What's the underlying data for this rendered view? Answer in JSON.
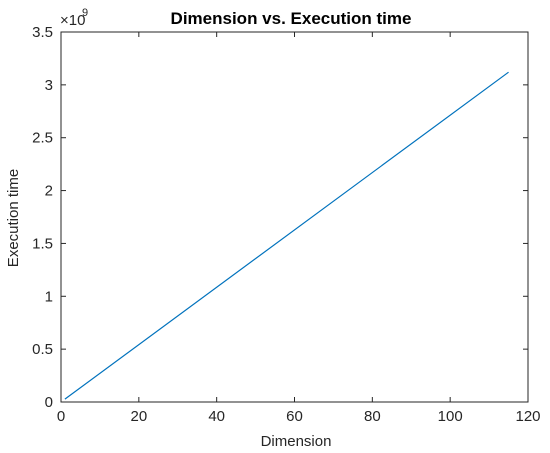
{
  "chart_data": {
    "type": "line",
    "title": "Dimension vs. Execution time",
    "xlabel": "Dimension",
    "ylabel": "Execution time",
    "xlim": [
      0,
      120
    ],
    "ylim": [
      0,
      3.5
    ],
    "x_ticks": [
      "0",
      "20",
      "40",
      "60",
      "80",
      "100",
      "120"
    ],
    "y_ticks": [
      "0",
      "0.5",
      "1",
      "1.5",
      "2",
      "2.5",
      "3",
      "3.5"
    ],
    "y_exponent_base": "×10",
    "y_exponent_power": "9",
    "grid": false,
    "series": [
      {
        "color": "#0072BD",
        "x": [
          1,
          115
        ],
        "y": [
          0.027,
          3.12
        ]
      }
    ]
  }
}
